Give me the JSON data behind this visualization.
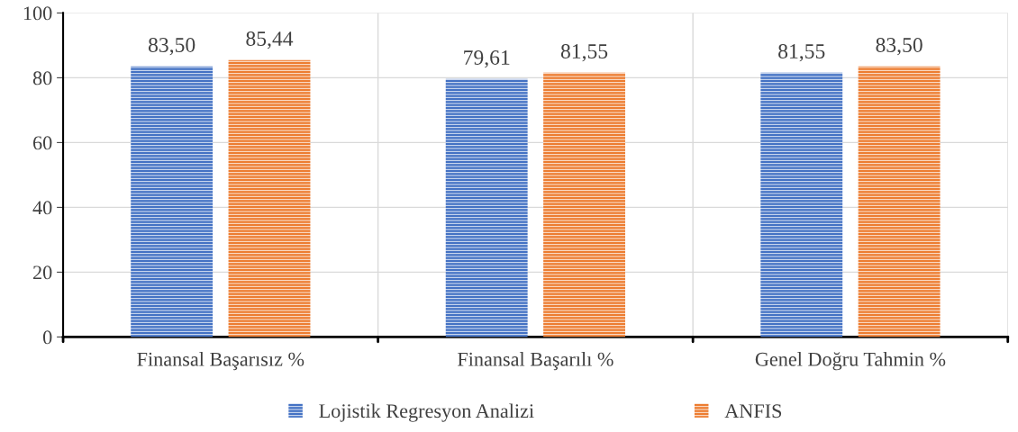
{
  "chart_data": {
    "type": "bar",
    "categories": [
      "Finansal Başarısız %",
      "Finansal Başarılı %",
      "Genel Doğru Tahmin %"
    ],
    "series": [
      {
        "name": "Lojistik Regresyon Analizi",
        "color": "#4472c4",
        "values": [
          83.5,
          79.61,
          81.55
        ],
        "value_labels": [
          "83,50",
          "79,61",
          "81,55"
        ]
      },
      {
        "name": "ANFIS",
        "color": "#ed7d31",
        "values": [
          85.44,
          81.55,
          83.5
        ],
        "value_labels": [
          "85,44",
          "81,55",
          "83,50"
        ]
      }
    ],
    "ylim": [
      0,
      100
    ],
    "yticks": [
      0,
      20,
      40,
      60,
      80,
      100
    ],
    "grid": true,
    "legend": "bottom"
  }
}
